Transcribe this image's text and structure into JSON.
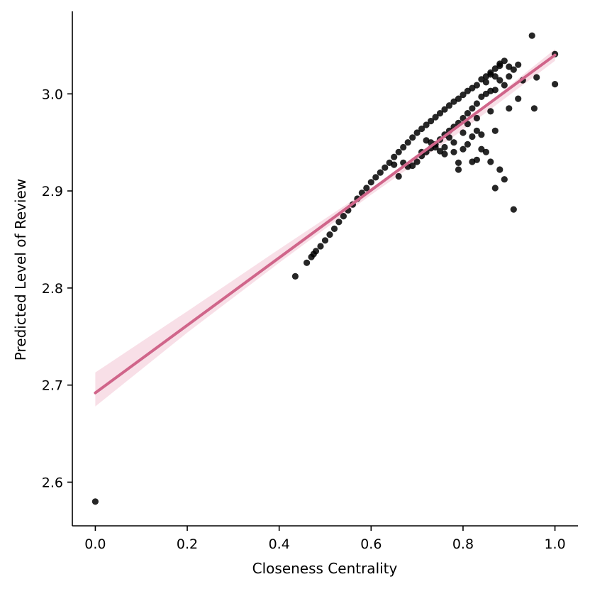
{
  "chart_data": {
    "type": "scatter",
    "xlabel": "Closeness Centrality",
    "ylabel": "Predicted Level of Review",
    "xlim": [
      -0.05,
      1.05
    ],
    "ylim": [
      2.555,
      3.085
    ],
    "x_ticks": [
      0.0,
      0.2,
      0.4,
      0.6,
      0.8,
      1.0
    ],
    "x_tick_labels": [
      "0.0",
      "0.2",
      "0.4",
      "0.6",
      "0.8",
      "1.0"
    ],
    "y_ticks": [
      2.6,
      2.7,
      2.8,
      2.9,
      3.0
    ],
    "y_tick_labels": [
      "2.6",
      "2.7",
      "2.8",
      "2.9",
      "3.0"
    ],
    "grid": false,
    "legend": "none",
    "colors": {
      "points": "#000000",
      "fit_line": "#d0658a",
      "confidence_band": "#f5d4df"
    },
    "regression": {
      "intercept": 2.692,
      "slope": 0.348,
      "ci_band": [
        {
          "x": 0.0,
          "lower": 2.678,
          "upper": 2.713
        },
        {
          "x": 0.2,
          "lower": 2.754,
          "upper": 2.776
        },
        {
          "x": 0.4,
          "lower": 2.826,
          "upper": 2.84
        },
        {
          "x": 0.6,
          "lower": 2.896,
          "upper": 2.903
        },
        {
          "x": 0.8,
          "lower": 2.963,
          "upper": 2.97
        },
        {
          "x": 1.0,
          "lower": 3.034,
          "upper": 3.046
        }
      ]
    },
    "points": [
      [
        0.0,
        2.58
      ],
      [
        0.435,
        2.812
      ],
      [
        0.46,
        2.826
      ],
      [
        0.47,
        2.832
      ],
      [
        0.475,
        2.835
      ],
      [
        0.48,
        2.838
      ],
      [
        0.49,
        2.843
      ],
      [
        0.5,
        2.849
      ],
      [
        0.51,
        2.855
      ],
      [
        0.52,
        2.861
      ],
      [
        0.53,
        2.868
      ],
      [
        0.54,
        2.874
      ],
      [
        0.55,
        2.88
      ],
      [
        0.56,
        2.886
      ],
      [
        0.57,
        2.892
      ],
      [
        0.58,
        2.898
      ],
      [
        0.59,
        2.903
      ],
      [
        0.6,
        2.909
      ],
      [
        0.61,
        2.914
      ],
      [
        0.62,
        2.919
      ],
      [
        0.63,
        2.924
      ],
      [
        0.64,
        2.929
      ],
      [
        0.65,
        2.935
      ],
      [
        0.66,
        2.94
      ],
      [
        0.67,
        2.945
      ],
      [
        0.68,
        2.95
      ],
      [
        0.69,
        2.955
      ],
      [
        0.7,
        2.96
      ],
      [
        0.71,
        2.964
      ],
      [
        0.72,
        2.968
      ],
      [
        0.73,
        2.972
      ],
      [
        0.74,
        2.976
      ],
      [
        0.75,
        2.98
      ],
      [
        0.76,
        2.984
      ],
      [
        0.77,
        2.988
      ],
      [
        0.78,
        2.992
      ],
      [
        0.79,
        2.995
      ],
      [
        0.8,
        2.999
      ],
      [
        0.81,
        3.003
      ],
      [
        0.82,
        3.006
      ],
      [
        0.83,
        3.009
      ],
      [
        0.85,
        3.018
      ],
      [
        0.86,
        3.022
      ],
      [
        0.87,
        3.026
      ],
      [
        0.88,
        3.029
      ],
      [
        0.89,
        3.034
      ],
      [
        0.9,
        3.028
      ],
      [
        0.91,
        3.025
      ],
      [
        0.92,
        3.03
      ],
      [
        0.93,
        3.014
      ],
      [
        0.95,
        3.06
      ],
      [
        1.0,
        3.041
      ],
      [
        1.0,
        3.01
      ],
      [
        0.955,
        2.985
      ],
      [
        0.96,
        3.017
      ],
      [
        0.92,
        2.995
      ],
      [
        0.9,
        2.985
      ],
      [
        0.88,
        2.922
      ],
      [
        0.89,
        2.912
      ],
      [
        0.87,
        2.903
      ],
      [
        0.91,
        2.881
      ],
      [
        0.87,
        2.962
      ],
      [
        0.86,
        2.93
      ],
      [
        0.85,
        2.94
      ],
      [
        0.84,
        2.943
      ],
      [
        0.83,
        2.962
      ],
      [
        0.83,
        2.932
      ],
      [
        0.82,
        2.93
      ],
      [
        0.82,
        2.956
      ],
      [
        0.81,
        2.948
      ],
      [
        0.8,
        2.943
      ],
      [
        0.79,
        2.922
      ],
      [
        0.79,
        2.929
      ],
      [
        0.78,
        2.94
      ],
      [
        0.77,
        2.955
      ],
      [
        0.76,
        2.938
      ],
      [
        0.75,
        2.941
      ],
      [
        0.74,
        2.945
      ],
      [
        0.73,
        2.95
      ],
      [
        0.72,
        2.952
      ],
      [
        0.71,
        2.94
      ],
      [
        0.7,
        2.93
      ],
      [
        0.69,
        2.926
      ],
      [
        0.68,
        2.925
      ],
      [
        0.67,
        2.929
      ],
      [
        0.66,
        2.915
      ],
      [
        0.65,
        2.927
      ],
      [
        0.9,
        3.018
      ],
      [
        0.89,
        3.009
      ],
      [
        0.88,
        3.014
      ],
      [
        0.87,
        3.004
      ],
      [
        0.86,
        3.003
      ],
      [
        0.85,
        3.0
      ],
      [
        0.84,
        2.997
      ],
      [
        0.83,
        2.99
      ],
      [
        0.82,
        2.985
      ],
      [
        0.81,
        2.98
      ],
      [
        0.8,
        2.975
      ],
      [
        0.79,
        2.97
      ],
      [
        0.78,
        2.966
      ],
      [
        0.77,
        2.962
      ],
      [
        0.76,
        2.958
      ],
      [
        0.75,
        2.953
      ],
      [
        0.74,
        2.948
      ],
      [
        0.73,
        2.944
      ],
      [
        0.72,
        2.94
      ],
      [
        0.71,
        2.936
      ],
      [
        0.84,
        3.015
      ],
      [
        0.86,
        3.02
      ],
      [
        0.87,
        3.018
      ],
      [
        0.88,
        3.031
      ],
      [
        0.85,
        3.012
      ],
      [
        0.8,
        2.96
      ],
      [
        0.78,
        2.95
      ],
      [
        0.76,
        2.945
      ],
      [
        0.81,
        2.969
      ],
      [
        0.83,
        2.975
      ],
      [
        0.86,
        2.982
      ],
      [
        0.84,
        2.958
      ]
    ]
  }
}
